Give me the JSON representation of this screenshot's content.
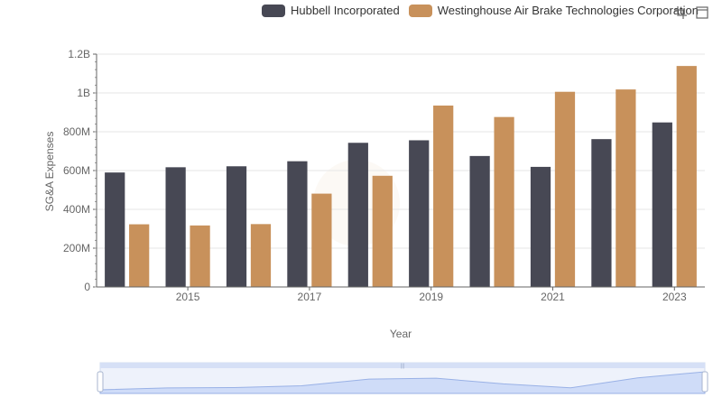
{
  "legend": {
    "items": [
      {
        "label": "Hubbell Incorporated",
        "color": "#474854"
      },
      {
        "label": "Westinghouse Air Brake Technologies Corporation",
        "color": "#C8915B"
      }
    ]
  },
  "toolbox": {
    "icons": [
      "zoom-icon",
      "restore-icon"
    ]
  },
  "chart_data": {
    "type": "bar",
    "xlabel": "Year",
    "ylabel": "SG&A Expenses",
    "categories": [
      "2014",
      "2015",
      "2016",
      "2017",
      "2018",
      "2019",
      "2020",
      "2021",
      "2022",
      "2023"
    ],
    "x_tick_labels": [
      "2015",
      "2017",
      "2019",
      "2021",
      "2023"
    ],
    "y_tick_labels": [
      "0",
      "200M",
      "400M",
      "600M",
      "800M",
      "1B",
      "1.2B"
    ],
    "ylim": [
      0,
      1200000000
    ],
    "grid": true,
    "legend_position": "top",
    "series": [
      {
        "name": "Hubbell Incorporated",
        "color": "#474854",
        "values": [
          590000000,
          617000000,
          622000000,
          648000000,
          743000000,
          756000000,
          675000000,
          619000000,
          762000000,
          848000000
        ]
      },
      {
        "name": "Westinghouse Air Brake Technologies Corporation",
        "color": "#C8915B",
        "values": [
          323000000,
          317000000,
          324000000,
          481000000,
          573000000,
          935000000,
          876000000,
          1006000000,
          1018000000,
          1139000000
        ]
      }
    ]
  }
}
